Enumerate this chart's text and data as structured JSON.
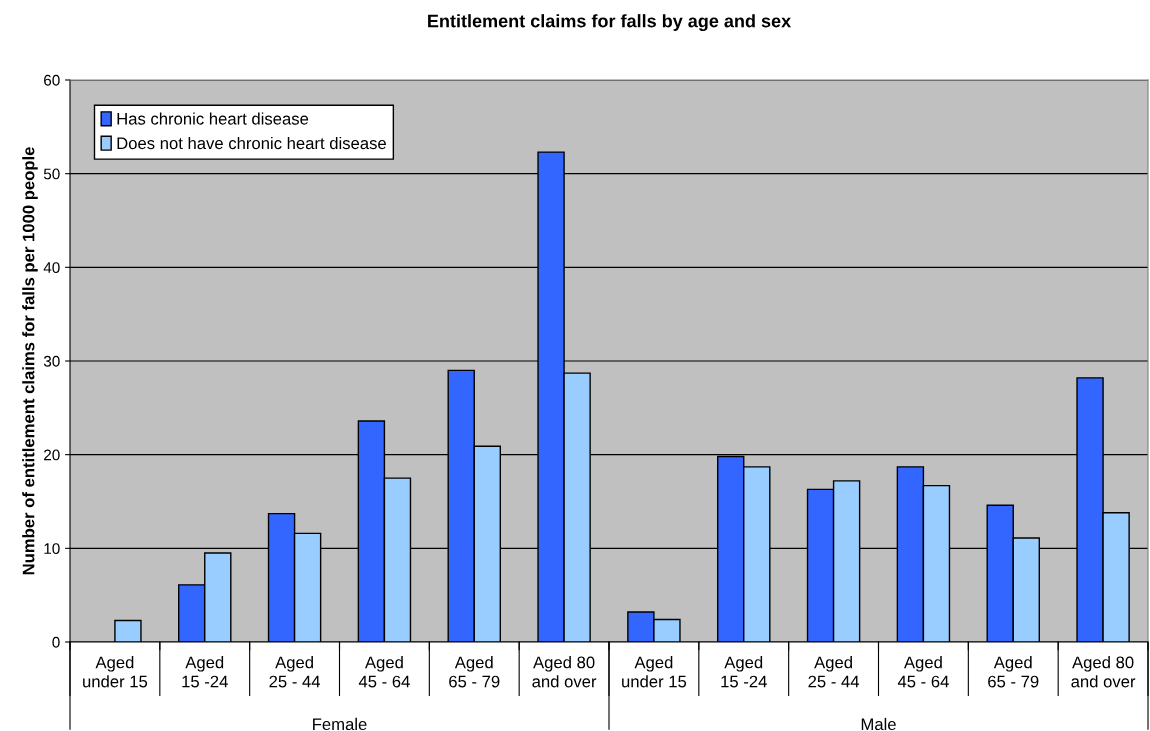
{
  "chart_data": {
    "type": "bar",
    "title": "Entitlement claims for falls by age and sex",
    "ylabel": "Number of entitlement claims for falls per 1000 people",
    "categories": [
      "Aged\nunder 15",
      "Aged\n15 -24",
      "Aged\n25 - 44",
      "Aged\n45 - 64",
      "Aged\n65 - 79",
      "Aged 80\nand over",
      "Aged\nunder 15",
      "Aged\n15 -24",
      "Aged\n25 - 44",
      "Aged\n45 - 64",
      "Aged\n65 - 79",
      "Aged 80\nand over"
    ],
    "series": [
      {
        "name": "Has chronic heart disease",
        "color": "#3366ff",
        "values": [
          null,
          6.1,
          13.7,
          23.6,
          29.0,
          52.3,
          3.2,
          19.8,
          16.3,
          18.7,
          14.6,
          28.2
        ]
      },
      {
        "name": "Does not have chronic heart disease",
        "color": "#99ccff",
        "values": [
          2.3,
          9.5,
          11.6,
          17.5,
          20.9,
          28.7,
          2.4,
          18.7,
          17.2,
          16.7,
          11.1,
          13.8
        ]
      }
    ],
    "annotations": [
      "Female",
      "Male"
    ],
    "ylim": [
      0,
      60
    ],
    "yticks": [
      0,
      10,
      20,
      30,
      40,
      50,
      60
    ],
    "grid": "y",
    "legend": "top left"
  }
}
